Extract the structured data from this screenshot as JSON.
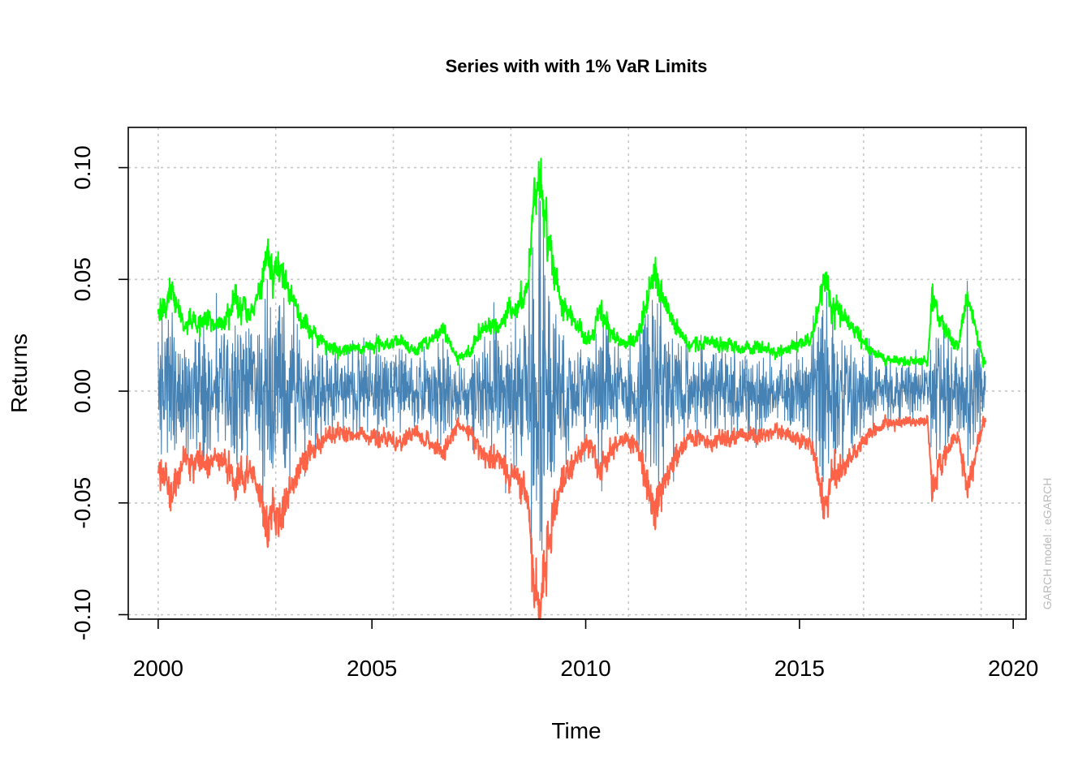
{
  "chart_data": {
    "type": "line",
    "title": "Series with with 1% VaR Limits",
    "xlabel": "Time",
    "ylabel": "Returns",
    "annotation": "GARCH model : eGARCH",
    "xlim": [
      1999.3,
      2020.3
    ],
    "ylim": [
      -0.102,
      0.118
    ],
    "x_ticks": [
      2000,
      2005,
      2010,
      2015,
      2020
    ],
    "x_tick_labels": [
      "2000",
      "2005",
      "2010",
      "2015",
      "2020"
    ],
    "y_ticks": [
      -0.1,
      -0.05,
      0.0,
      0.05,
      0.1
    ],
    "y_tick_labels": [
      "-0.10",
      "-0.05",
      "0.00",
      "0.05",
      "0.10"
    ],
    "x_range": [
      2000.0,
      2019.35
    ],
    "grid": true,
    "colors": {
      "returns": "#4682B4",
      "upper": "#00FF00",
      "lower": "#FF6347"
    },
    "volatility_profile": {
      "x": [
        2000.0,
        2000.3,
        2000.6,
        2001.0,
        2001.5,
        2001.8,
        2002.2,
        2002.55,
        2002.8,
        2003.2,
        2003.6,
        2004.0,
        2004.5,
        2005.0,
        2005.5,
        2006.0,
        2006.4,
        2006.7,
        2007.0,
        2007.3,
        2007.6,
        2008.0,
        2008.3,
        2008.6,
        2008.8,
        2008.95,
        2009.2,
        2009.5,
        2009.8,
        2010.1,
        2010.35,
        2010.7,
        2011.0,
        2011.3,
        2011.6,
        2011.8,
        2012.2,
        2012.6,
        2013.0,
        2013.5,
        2014.0,
        2014.5,
        2014.9,
        2015.3,
        2015.6,
        2015.75,
        2016.1,
        2016.6,
        2017.0,
        2017.5,
        2018.0,
        2018.1,
        2018.3,
        2018.7,
        2018.95,
        2019.2,
        2019.35
      ],
      "upper_var": [
        0.035,
        0.045,
        0.03,
        0.032,
        0.028,
        0.042,
        0.033,
        0.06,
        0.052,
        0.038,
        0.025,
        0.02,
        0.018,
        0.02,
        0.022,
        0.018,
        0.024,
        0.028,
        0.014,
        0.018,
        0.028,
        0.03,
        0.036,
        0.04,
        0.085,
        0.095,
        0.06,
        0.035,
        0.028,
        0.022,
        0.038,
        0.022,
        0.02,
        0.028,
        0.055,
        0.04,
        0.025,
        0.02,
        0.022,
        0.02,
        0.02,
        0.018,
        0.02,
        0.022,
        0.05,
        0.04,
        0.032,
        0.02,
        0.015,
        0.013,
        0.013,
        0.045,
        0.03,
        0.02,
        0.045,
        0.02,
        0.013
      ]
    }
  }
}
